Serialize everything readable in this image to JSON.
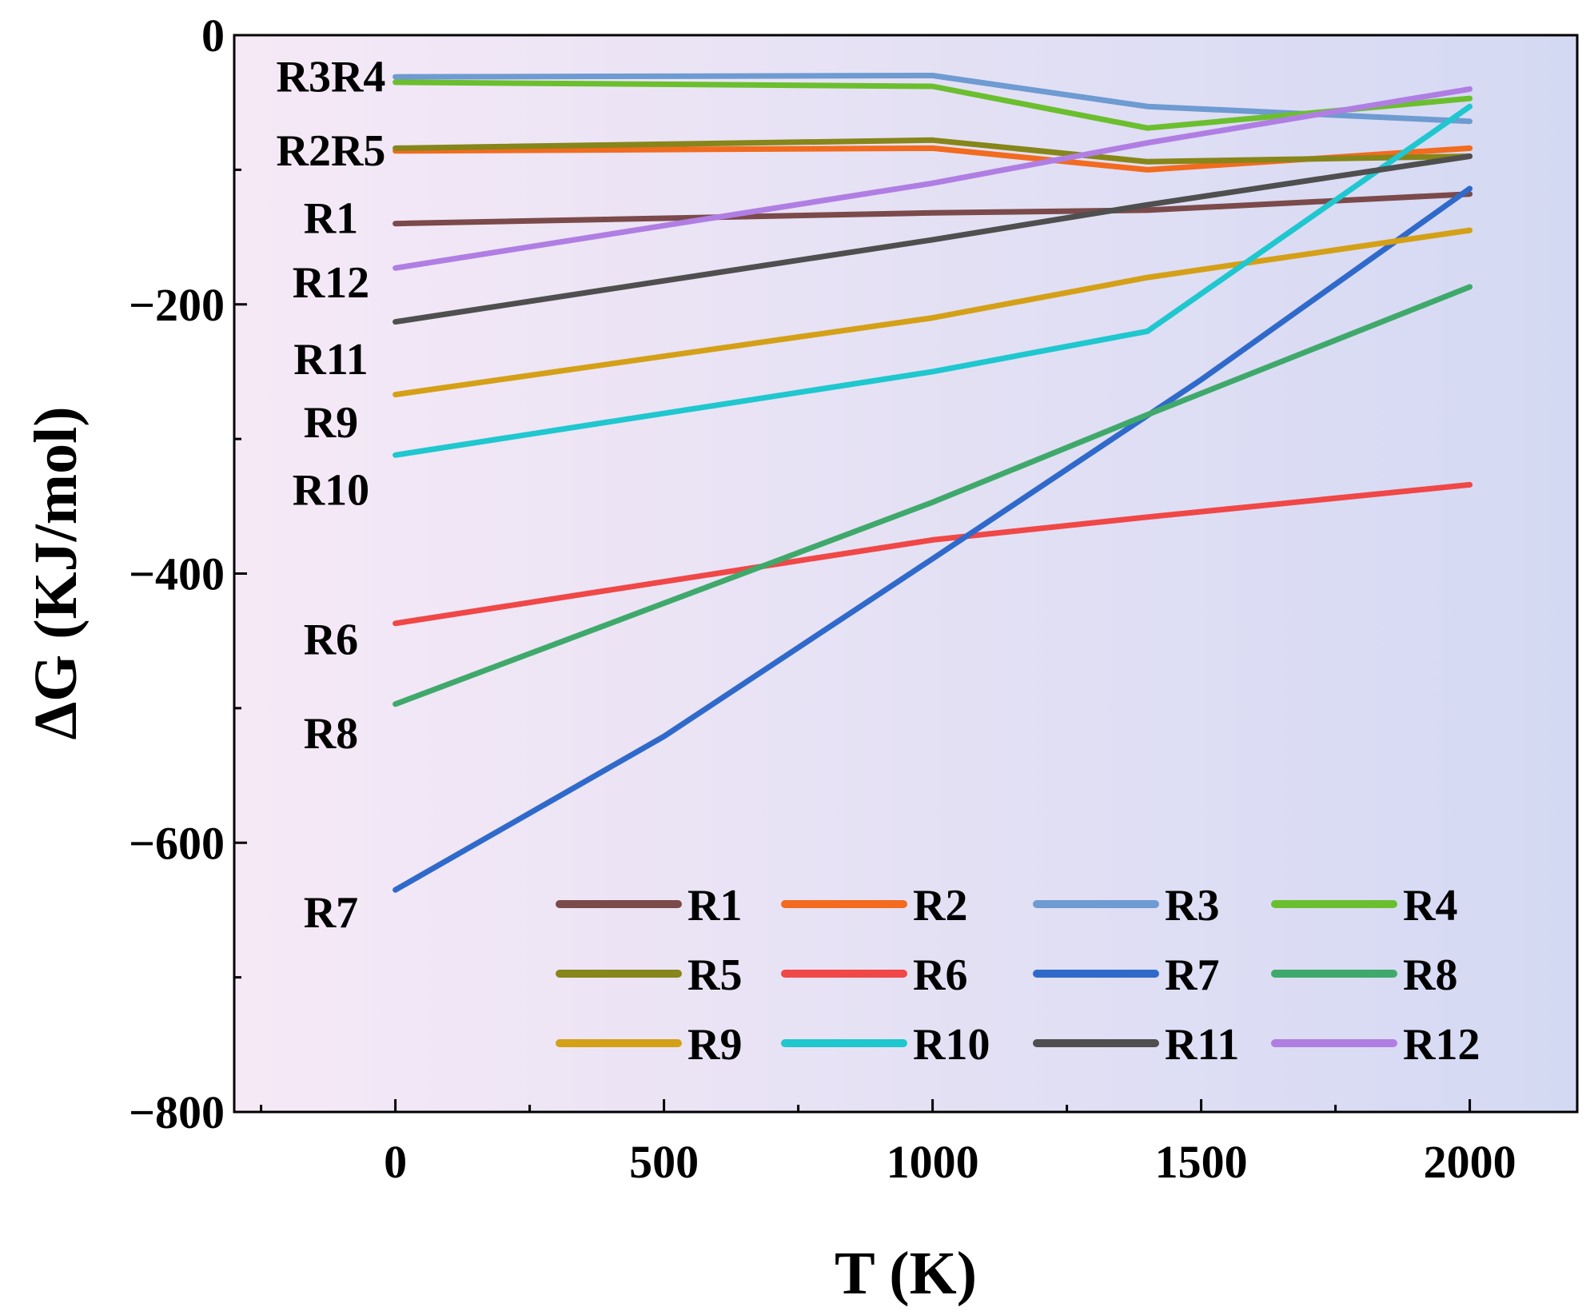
{
  "chart_data": {
    "type": "line",
    "title": "",
    "xlabel": "T (K)",
    "ylabel": "ΔG (KJ/mol)",
    "xlim": [
      -300,
      2200
    ],
    "ylim": [
      -800,
      0
    ],
    "xticks": [
      0,
      500,
      1000,
      1500,
      2000
    ],
    "yticks": [
      0,
      -200,
      -400,
      -600,
      -800
    ],
    "grid": false,
    "legend": {
      "placement": "bottom-right",
      "columns": 4,
      "entries": [
        "R1",
        "R2",
        "R3",
        "R4",
        "R5",
        "R6",
        "R7",
        "R8",
        "R9",
        "R10",
        "R11",
        "R12"
      ]
    },
    "series": [
      {
        "name": "R1",
        "color": "#7B4A4A",
        "x": [
          0,
          1000,
          1400,
          2000
        ],
        "y": [
          -140,
          -132,
          -130,
          -118
        ]
      },
      {
        "name": "R2",
        "color": "#F26B1F",
        "x": [
          0,
          1000,
          1400,
          2000
        ],
        "y": [
          -86,
          -84,
          -100,
          -84
        ]
      },
      {
        "name": "R3",
        "color": "#6E9BD1",
        "x": [
          0,
          1000,
          1400,
          2000
        ],
        "y": [
          -31,
          -30,
          -53,
          -64
        ]
      },
      {
        "name": "R4",
        "color": "#6BBF2F",
        "x": [
          0,
          1000,
          1400,
          2000
        ],
        "y": [
          -35,
          -38,
          -69,
          -47
        ]
      },
      {
        "name": "R5",
        "color": "#86861A",
        "x": [
          0,
          1000,
          1400,
          2000
        ],
        "y": [
          -84,
          -78,
          -94,
          -90
        ]
      },
      {
        "name": "R6",
        "color": "#F04747",
        "x": [
          0,
          1000,
          1400,
          2000
        ],
        "y": [
          -437,
          -375,
          -358,
          -334
        ]
      },
      {
        "name": "R7",
        "color": "#2F6ACB",
        "x": [
          0,
          500,
          1000,
          1500,
          2000
        ],
        "y": [
          -635,
          -521,
          -389,
          -256,
          -114
        ]
      },
      {
        "name": "R8",
        "color": "#3FA96B",
        "x": [
          0,
          1000,
          1400,
          2000
        ],
        "y": [
          -497,
          -347,
          -282,
          -187
        ]
      },
      {
        "name": "R9",
        "color": "#D4A017",
        "x": [
          0,
          1000,
          1400,
          2000
        ],
        "y": [
          -267,
          -210,
          -180,
          -145
        ]
      },
      {
        "name": "R10",
        "color": "#1FC7CF",
        "x": [
          0,
          1000,
          1400,
          2000
        ],
        "y": [
          -312,
          -250,
          -220,
          -53
        ]
      },
      {
        "name": "R11",
        "color": "#4F4F4F",
        "x": [
          0,
          1000,
          1400,
          2000
        ],
        "y": [
          -213,
          -152,
          -126,
          -90
        ]
      },
      {
        "name": "R12",
        "color": "#B07EE3",
        "x": [
          0,
          1000,
          1400,
          2000
        ],
        "y": [
          -173,
          -110,
          -80,
          -40
        ]
      }
    ],
    "side_labels": [
      {
        "text": "R3R4",
        "y": -30
      },
      {
        "text": "R2R5",
        "y": -85
      },
      {
        "text": "R1",
        "y": -135
      },
      {
        "text": "R12",
        "y": -183
      },
      {
        "text": "R11",
        "y": -240
      },
      {
        "text": "R9",
        "y": -287
      },
      {
        "text": "R10",
        "y": -337
      },
      {
        "text": "R6",
        "y": -448
      },
      {
        "text": "R8",
        "y": -518
      },
      {
        "text": "R7",
        "y": -651
      }
    ]
  }
}
